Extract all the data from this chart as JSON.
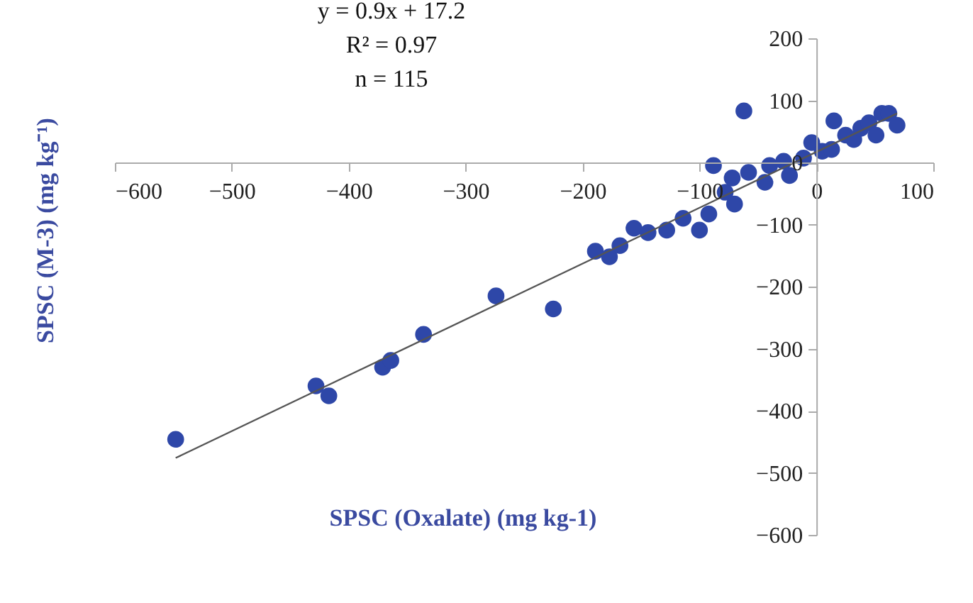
{
  "chart_data": {
    "type": "scatter",
    "xlabel": "SPSC (Oxalate) (mg kg-1)",
    "ylabel": "SPSC (M-3) (mg kg⁻¹)",
    "annotations": [
      "y = 0.9x + 17.2",
      "R² = 0.97",
      "n = 115"
    ],
    "xlim": [
      -600,
      100
    ],
    "xticks": [
      -600,
      -500,
      -400,
      -300,
      -200,
      -100,
      0,
      100
    ],
    "ylim": [
      -600,
      200
    ],
    "yticks": [
      -600,
      -500,
      -400,
      -300,
      -200,
      -100,
      0,
      100,
      200
    ],
    "series": [
      {
        "color": "#2e47a8",
        "marker": "circle",
        "x": [
          -548,
          -428,
          -417,
          -371,
          -364,
          -336,
          -274,
          -225,
          -189,
          -177,
          -168,
          -156,
          -144,
          -128,
          -114,
          -100,
          -92,
          -88,
          -78,
          -72,
          -70,
          -62,
          -58,
          -44,
          -40,
          -28,
          -23,
          -11,
          -4,
          5,
          13,
          15,
          25,
          32,
          38,
          45,
          51,
          56,
          62,
          69
        ],
        "values": [
          -446,
          -360,
          -376,
          -330,
          -319,
          -277,
          -215,
          -236,
          -143,
          -152,
          -134,
          -106,
          -113,
          -109,
          -90,
          -109,
          -83,
          -5,
          -48,
          -25,
          -67,
          83,
          -16,
          -32,
          -5,
          2,
          -21,
          7,
          32,
          18,
          21,
          67,
          44,
          37,
          55,
          64,
          44,
          79,
          79,
          60
        ]
      },
      {
        "type": "line",
        "color": "#555555",
        "x": [
          -548,
          69
        ],
        "values": [
          -476,
          79
        ]
      }
    ]
  }
}
